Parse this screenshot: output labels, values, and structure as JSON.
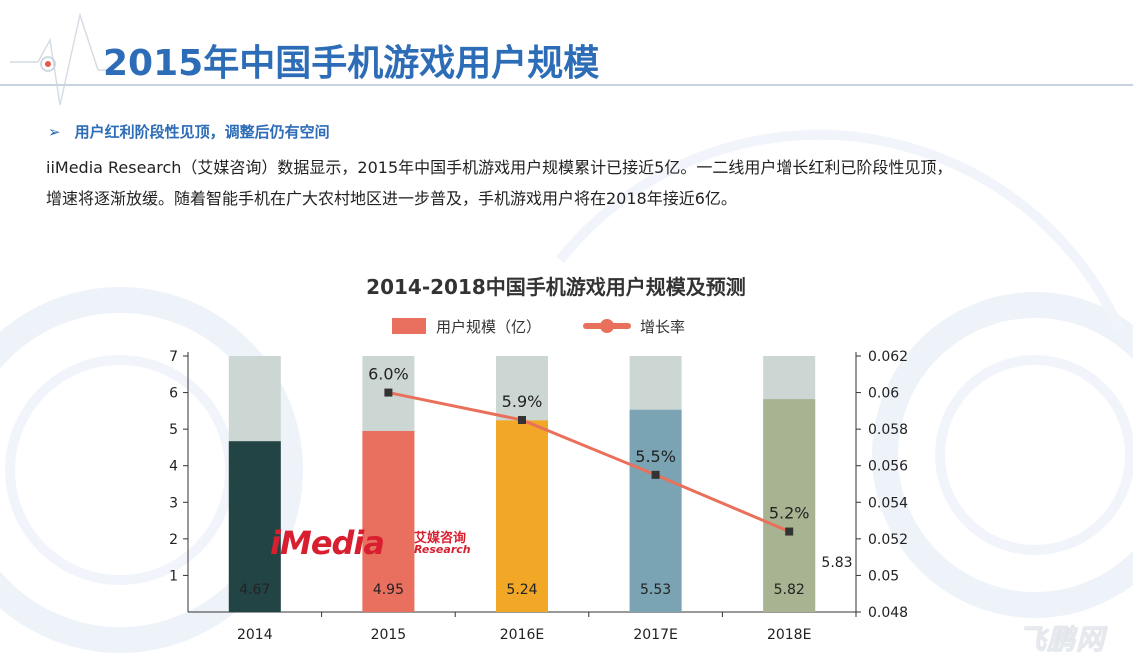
{
  "header": {
    "title": "2015年中国手机游戏用户规模"
  },
  "bullet": {
    "arrow": "➢",
    "text": "用户红利阶段性见顶，调整后仍有空间"
  },
  "body": {
    "line1": "iiMedia Research（艾媒咨询）数据显示，2015年中国手机游戏用户规模累计已接近5亿。一二线用户增长红利已阶段性见顶，",
    "line2": "增速将逐渐放缓。随着智能手机在广大农村地区进一步普及，手机游戏用户将在2018年接近6亿。"
  },
  "logo": {
    "main": "iMedia",
    "cn": "艾媒咨询",
    "en": "Research"
  },
  "watermark": "飞鹏网",
  "colors": {
    "title_blue": "#2d6cb6",
    "line_color": "#e9705a",
    "bar_background": "#ccd6d2"
  },
  "chart_data": {
    "type": "bar",
    "title": "2014-2018中国手机游戏用户规模及预测",
    "categories": [
      "2014",
      "2015",
      "2016E",
      "2017E",
      "2018E"
    ],
    "series": [
      {
        "name": "用户规模（亿）",
        "type": "bar",
        "values": [
          4.67,
          4.95,
          5.24,
          5.53,
          5.82
        ],
        "labels": [
          "4.67",
          "4.95",
          "5.24",
          "5.53",
          "5.82"
        ],
        "colors": [
          "#234444",
          "#e9705f",
          "#f2a726",
          "#7aa4b4",
          "#a8b391"
        ]
      },
      {
        "name": "增长率",
        "type": "line",
        "axis": "right",
        "x": [
          "2015",
          "2016E",
          "2017E",
          "2018E"
        ],
        "values": [
          0.06,
          0.0585,
          0.0555,
          0.0524
        ],
        "labels": [
          "6.0%",
          "5.9%",
          "5.5%",
          "5.2%"
        ]
      }
    ],
    "background_bar_value": 7,
    "stray_label": "5.83",
    "y_left": {
      "ylim": [
        0,
        7
      ],
      "ticks": [
        "1",
        "2",
        "3",
        "4",
        "5",
        "6",
        "7"
      ]
    },
    "y_right": {
      "ylim": [
        0.048,
        0.062
      ],
      "ticks": [
        "0.048",
        "0.05",
        "0.052",
        "0.054",
        "0.056",
        "0.058",
        "0.06",
        "0.062"
      ]
    },
    "legend_position": "top-center",
    "grid": false
  }
}
